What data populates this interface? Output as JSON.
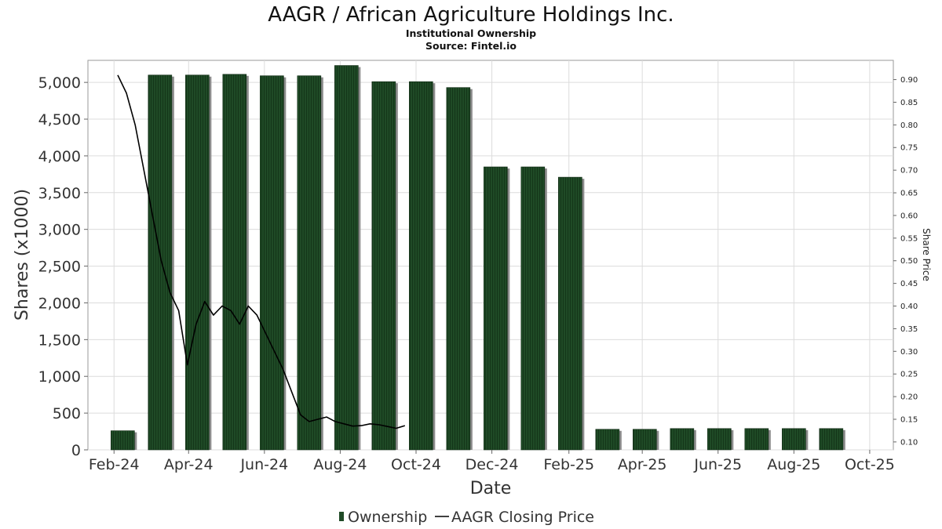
{
  "chart_data": {
    "type": "bar",
    "title": "AAGR / African Agriculture Holdings Inc.",
    "subtitle": "Institutional Ownership",
    "source": "Source: Fintel.io",
    "xlabel": "Date",
    "ylabel": "Shares (x1000)",
    "y2label": "Share Price",
    "ylim": [
      0,
      5300
    ],
    "y2lim": [
      0.0825,
      0.9425
    ],
    "xlim": [
      "2024-01-11",
      "2025-10-20"
    ],
    "grid": true,
    "legend_position": "bottom",
    "colors": {
      "bar": "#1f4a26",
      "bar_shadow": "#8c8c8c",
      "line": "#000000"
    },
    "y_ticks": [
      0,
      500,
      1000,
      1500,
      2000,
      2500,
      3000,
      3500,
      4000,
      4500,
      5000
    ],
    "y_tick_labels": [
      "0",
      "500",
      "1,000",
      "1,500",
      "2,000",
      "2,500",
      "3,000",
      "3,500",
      "4,000",
      "4,500",
      "5,000"
    ],
    "y2_ticks": [
      0.1,
      0.15,
      0.2,
      0.25,
      0.3,
      0.35,
      0.4,
      0.45,
      0.5,
      0.55,
      0.6,
      0.65,
      0.7,
      0.75,
      0.8,
      0.85,
      0.9
    ],
    "y2_tick_labels": [
      "0.10",
      "0.15",
      "0.20",
      "0.25",
      "0.30",
      "0.35",
      "0.40",
      "0.45",
      "0.50",
      "0.55",
      "0.60",
      "0.65",
      "0.70",
      "0.75",
      "0.80",
      "0.85",
      "0.90"
    ],
    "x_ticks": [
      "2024-02-01",
      "2024-04-01",
      "2024-06-01",
      "2024-08-01",
      "2024-10-01",
      "2024-12-01",
      "2025-02-01",
      "2025-04-01",
      "2025-06-01",
      "2025-08-01",
      "2025-10-01"
    ],
    "x_tick_labels": [
      "Feb-24",
      "Apr-24",
      "Jun-24",
      "Aug-24",
      "Oct-24",
      "Dec-24",
      "Feb-25",
      "Apr-25",
      "Jun-25",
      "Aug-25",
      "Oct-25"
    ],
    "series": [
      {
        "name": "Ownership",
        "type": "bar",
        "x": [
          "2024-02-08",
          "2024-03-09",
          "2024-04-08",
          "2024-05-08",
          "2024-06-07",
          "2024-07-07",
          "2024-08-06",
          "2024-09-05",
          "2024-10-05",
          "2024-11-04",
          "2024-12-04",
          "2025-01-03",
          "2025-02-02",
          "2025-03-04",
          "2025-04-03",
          "2025-05-03",
          "2025-06-02",
          "2025-07-02",
          "2025-08-01",
          "2025-08-31"
        ],
        "values": [
          260,
          5100,
          5100,
          5110,
          5090,
          5090,
          5230,
          5010,
          5010,
          4930,
          3850,
          3850,
          3710,
          280,
          280,
          290,
          290,
          290,
          290,
          290
        ]
      },
      {
        "name": "AAGR Closing Price",
        "type": "line",
        "x": [
          "2024-02-04",
          "2024-02-11",
          "2024-02-18",
          "2024-02-25",
          "2024-03-03",
          "2024-03-10",
          "2024-03-17",
          "2024-03-24",
          "2024-03-31",
          "2024-04-07",
          "2024-04-14",
          "2024-04-21",
          "2024-04-28",
          "2024-05-05",
          "2024-05-12",
          "2024-05-19",
          "2024-05-26",
          "2024-06-02",
          "2024-06-09",
          "2024-06-16",
          "2024-06-23",
          "2024-06-30",
          "2024-07-07",
          "2024-07-14",
          "2024-07-21",
          "2024-07-28",
          "2024-08-04",
          "2024-08-11",
          "2024-08-18",
          "2024-08-25",
          "2024-09-01",
          "2024-09-08",
          "2024-09-15",
          "2024-09-22"
        ],
        "values": [
          0.91,
          0.87,
          0.8,
          0.7,
          0.6,
          0.5,
          0.43,
          0.39,
          0.27,
          0.36,
          0.41,
          0.38,
          0.4,
          0.39,
          0.36,
          0.4,
          0.38,
          0.34,
          0.3,
          0.26,
          0.21,
          0.16,
          0.145,
          0.15,
          0.155,
          0.145,
          0.14,
          0.135,
          0.136,
          0.14,
          0.138,
          0.134,
          0.13,
          0.136
        ]
      }
    ]
  }
}
